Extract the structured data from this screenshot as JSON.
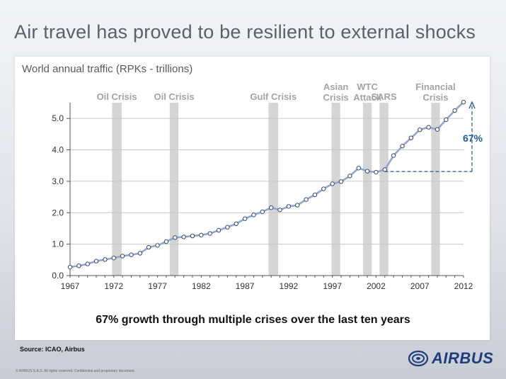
{
  "slide": {
    "title": "Air travel has proved to be resilient to external shocks",
    "caption": "67% growth through multiple crises over the last ten years",
    "source": "Source: ICAO, Airbus",
    "copyright": "© AIRBUS S.A.S. All rights reserved. Confidential and proprietary document.",
    "logo_text": "AIRBUS"
  },
  "chart_data": {
    "type": "line",
    "title": "World annual traffic (RPKs - trillions)",
    "xlabel": "",
    "ylabel": "",
    "xlim": [
      1967,
      2012
    ],
    "ylim": [
      0,
      5.5
    ],
    "x_ticks": [
      "1967",
      "1972",
      "1977",
      "1982",
      "1987",
      "1992",
      "1997",
      "2002",
      "2007",
      "2012"
    ],
    "y_ticks": [
      "0.0",
      "1.0",
      "2.0",
      "3.0",
      "4.0",
      "5.0"
    ],
    "grid": "horizontal",
    "line_color": "#8fa6d0",
    "band_color": "#d5d5d5",
    "annotation_color": "#1f5a9a",
    "series": [
      {
        "x": [
          1967,
          1968,
          1969,
          1970,
          1971,
          1972,
          1973,
          1974,
          1975,
          1976,
          1977,
          1978,
          1979,
          1980,
          1981,
          1982,
          1983,
          1984,
          1985,
          1986,
          1987,
          1988,
          1989,
          1990,
          1991,
          1992,
          1993,
          1994,
          1995,
          1996,
          1997,
          1998,
          1999,
          2000,
          2001,
          2002,
          2003,
          2004,
          2005,
          2006,
          2007,
          2008,
          2009,
          2010,
          2011,
          2012
        ],
        "values": [
          0.27,
          0.31,
          0.37,
          0.46,
          0.51,
          0.56,
          0.62,
          0.66,
          0.71,
          0.9,
          0.96,
          1.08,
          1.21,
          1.23,
          1.26,
          1.29,
          1.34,
          1.44,
          1.54,
          1.65,
          1.81,
          1.93,
          2.03,
          2.16,
          2.09,
          2.2,
          2.24,
          2.42,
          2.57,
          2.76,
          2.92,
          2.99,
          3.17,
          3.42,
          3.32,
          3.29,
          3.37,
          3.82,
          4.12,
          4.38,
          4.64,
          4.72,
          4.65,
          4.96,
          5.25,
          5.52
        ]
      }
    ],
    "crisis_bands": [
      {
        "label": [
          "Oil Crisis"
        ],
        "start": 1971.8,
        "end": 1972.9
      },
      {
        "label": [
          "Oil Crisis"
        ],
        "start": 1978.4,
        "end": 1979.4
      },
      {
        "label": [
          "Gulf Crisis"
        ],
        "start": 1989.7,
        "end": 1990.8
      },
      {
        "label": [
          "Asian",
          "Crisis"
        ],
        "start": 1996.9,
        "end": 1997.9
      },
      {
        "label": [
          "WTC",
          "Attack"
        ],
        "start": 2000.5,
        "end": 2001.5
      },
      {
        "label": [
          "SARS"
        ],
        "start": 2002.4,
        "end": 2003.4
      },
      {
        "label": [
          "Financial",
          "Crisis"
        ],
        "start": 2008.3,
        "end": 2009.3
      }
    ],
    "growth_annotation": {
      "label": "67%",
      "from_x": 2002,
      "baseline": 3.31,
      "top": 5.52
    }
  }
}
